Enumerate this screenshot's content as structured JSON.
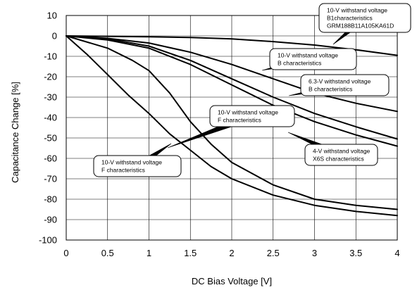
{
  "chart_data": {
    "type": "line",
    "xlabel": "DC Bias Voltage [V]",
    "ylabel": "Capacitance Change [%]",
    "xlim": [
      0,
      4
    ],
    "ylim": [
      -100,
      10
    ],
    "grid": true,
    "x_ticks": [
      "0",
      "0.5",
      "1",
      "1.5",
      "2",
      "2.5",
      "3",
      "3.5",
      "4"
    ],
    "y_ticks": [
      "10",
      "0",
      "-10",
      "-20",
      "-30",
      "-40",
      "-50",
      "-60",
      "-70",
      "-80",
      "-90",
      "-100"
    ],
    "series": [
      {
        "x": [
          0,
          0.5,
          1,
          1.5,
          2,
          2.5,
          3,
          3.5,
          4
        ],
        "y": [
          0,
          -0.2,
          -0.4,
          -0.8,
          -1.5,
          -2.8,
          -4.5,
          -6.8,
          -9.5
        ]
      },
      {
        "x": [
          0,
          0.5,
          1,
          1.5,
          2,
          2.5,
          3,
          3.5,
          4
        ],
        "y": [
          0,
          -1.2,
          -3.5,
          -8,
          -14,
          -21,
          -28,
          -33,
          -37
        ]
      },
      {
        "x": [
          0,
          0.5,
          1,
          1.5,
          2,
          2.5,
          3,
          3.5,
          4
        ],
        "y": [
          0,
          -1.5,
          -5,
          -12,
          -21,
          -30,
          -38,
          -44.5,
          -50.5
        ]
      },
      {
        "x": [
          0,
          0.5,
          1,
          1.5,
          2,
          2.5,
          3,
          3.5,
          4
        ],
        "y": [
          0,
          -2,
          -6,
          -14,
          -24,
          -34,
          -42,
          -48.5,
          -54
        ]
      },
      {
        "x": [
          0,
          0.5,
          0.8,
          1,
          1.25,
          1.5,
          1.75,
          2,
          2.5,
          3,
          3.5,
          4
        ],
        "y": [
          0,
          -6,
          -12,
          -17,
          -28,
          -42,
          -53,
          -62,
          -73,
          -80,
          -83,
          -85
        ]
      },
      {
        "x": [
          0,
          0.25,
          0.5,
          0.75,
          1,
          1.25,
          1.5,
          1.75,
          2,
          2.5,
          3,
          3.5,
          4
        ],
        "y": [
          0,
          -9,
          -19,
          -29,
          -38,
          -48,
          -56,
          -64,
          -70,
          -78,
          -83,
          -86,
          -88
        ]
      }
    ],
    "annotations": [
      {
        "lines": [
          "10-V withstand voltage",
          "B1characteristics",
          "GRM188B11A105KA61D"
        ]
      },
      {
        "lines": [
          "10-V withstand voltage",
          "B characteristics"
        ]
      },
      {
        "lines": [
          "6.3-V withstand voltage",
          "B characteristics"
        ]
      },
      {
        "lines": [
          "10-V withstand voltage",
          "F characteristics"
        ]
      },
      {
        "lines": [
          "4-V withstand voltage",
          "X6S characteristics"
        ]
      },
      {
        "lines": [
          "10-V withstand voltage",
          "F characteristics"
        ]
      }
    ]
  }
}
